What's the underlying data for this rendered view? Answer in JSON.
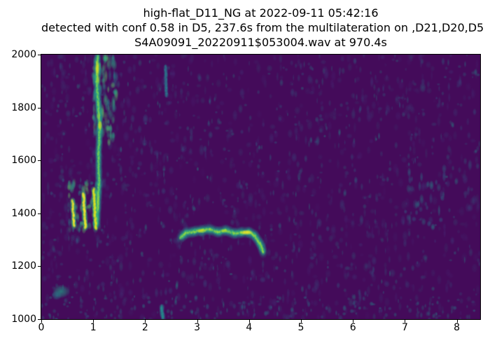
{
  "title": {
    "line1": "high-flat_D11_NG at 2022-09-11 05:42:16",
    "line2": "detected with conf 0.58 in D5, 237.6s from the multilateration on ,D21,D20,D5",
    "line3": "S4A09091_20220911$053004.wav at 970.4s"
  },
  "chart_data": {
    "type": "heatmap",
    "subtype": "spectrogram",
    "colormap": "viridis",
    "title_lines": [
      "high-flat_D11_NG at 2022-09-11 05:42:16",
      "detected with conf 0.58 in D5, 237.6s from the multilateration on ,D21,D20,D5",
      "S4A09091_20220911$053004.wav at 970.4s"
    ],
    "xlim": [
      0,
      8.45
    ],
    "ylim": [
      1000,
      2000
    ],
    "xticks": [
      0,
      1,
      2,
      3,
      4,
      5,
      6,
      7,
      8
    ],
    "yticks": [
      1000,
      1200,
      1400,
      1600,
      1800,
      2000
    ],
    "grid": false,
    "legend": null,
    "colors": {
      "background": "#440b5a",
      "low": "#31688e",
      "mid": "#26828e",
      "high": "#35b779",
      "peak": "#fde725"
    },
    "noise": {
      "seed": 1337,
      "passes": [
        {
          "count": 1100,
          "colors": [
            "#46327e",
            "#3b528b",
            "#31688e",
            "#2c728e",
            "#26828e",
            "#21918c"
          ],
          "rx": [
            2,
            5
          ],
          "ry": [
            3,
            9
          ],
          "alpha": [
            0.1,
            0.38
          ]
        },
        {
          "count": 650,
          "colors": [
            "#2c728e",
            "#26828e",
            "#21918c",
            "#1f9e89"
          ],
          "rx": [
            1.2,
            3.2
          ],
          "ry": [
            2,
            6
          ],
          "alpha": [
            0.2,
            0.5
          ]
        },
        {
          "count": 140,
          "colors": [
            "#26828e",
            "#21918c"
          ],
          "rx": [
            1.5,
            3.5
          ],
          "ry": [
            2,
            5
          ],
          "alpha": [
            0.25,
            0.55
          ],
          "f": [
            1000,
            1085
          ]
        }
      ]
    },
    "features": [
      {
        "name": "upper-band-cloud",
        "kind": "cloud",
        "t": [
          0.99,
          1.45
        ],
        "f": [
          1660,
          1995
        ],
        "count": 120,
        "colors": [
          "#21918c",
          "#27ad81",
          "#35b779",
          "#5ec962"
        ],
        "rx": [
          2,
          4.5
        ],
        "ry": [
          4,
          10
        ],
        "alpha": [
          0.22,
          0.6
        ]
      },
      {
        "name": "main-vertical-tonal",
        "kind": "line",
        "points": [
          [
            1.08,
            1992
          ],
          [
            1.065,
            1900
          ],
          [
            1.1,
            1810
          ],
          [
            1.125,
            1725
          ],
          [
            1.1,
            1625
          ],
          [
            1.11,
            1510
          ],
          [
            1.085,
            1420
          ],
          [
            1.07,
            1362
          ]
        ],
        "layers": [
          {
            "w": 6,
            "color": "#21918c",
            "alpha": 0.32
          },
          {
            "w": 3.2,
            "color": "#35b779",
            "alpha": 0.55
          },
          {
            "w": 1.7,
            "color": "#7ad151",
            "alpha": 0.8
          }
        ]
      },
      {
        "name": "hot-top",
        "kind": "blob",
        "t": 1.08,
        "f": 1948,
        "rt": 0.045,
        "rf": 36,
        "color": "#e8e419",
        "alpha": 0.9
      },
      {
        "name": "hot-top2",
        "kind": "blob",
        "t": 1.09,
        "f": 1905,
        "rt": 0.035,
        "rf": 20,
        "color": "#bddf26",
        "alpha": 0.75
      },
      {
        "name": "hot-mid",
        "kind": "blob",
        "t": 1.13,
        "f": 1733,
        "rt": 0.05,
        "rf": 20,
        "color": "#d8e219",
        "alpha": 0.8
      },
      {
        "name": "hot-mid2",
        "kind": "blob",
        "t": 1.1,
        "f": 1768,
        "rt": 0.04,
        "rf": 16,
        "color": "#aadc32",
        "alpha": 0.6
      },
      {
        "name": "hot-low",
        "kind": "blob",
        "t": 1.09,
        "f": 1445,
        "rt": 0.032,
        "rf": 48,
        "color": "#aadc32",
        "alpha": 0.7
      },
      {
        "name": "upsweep-cloud",
        "kind": "cloud",
        "t": [
          0.52,
          1.12
        ],
        "f": [
          1335,
          1525
        ],
        "count": 70,
        "colors": [
          "#21918c",
          "#35b779",
          "#5ec962"
        ],
        "rx": [
          2,
          4
        ],
        "ry": [
          3,
          8
        ],
        "alpha": [
          0.25,
          0.6
        ]
      },
      {
        "name": "upsweep-1",
        "kind": "line",
        "points": [
          [
            0.63,
            1352
          ],
          [
            0.6,
            1448
          ]
        ],
        "layers": [
          {
            "w": 4.5,
            "color": "#35b779",
            "alpha": 0.5
          },
          {
            "w": 2.2,
            "color": "#fde725",
            "alpha": 0.8
          }
        ]
      },
      {
        "name": "upsweep-2",
        "kind": "line",
        "points": [
          [
            0.85,
            1345
          ],
          [
            0.81,
            1475
          ]
        ],
        "layers": [
          {
            "w": 4.5,
            "color": "#35b779",
            "alpha": 0.5
          },
          {
            "w": 2.4,
            "color": "#fde725",
            "alpha": 0.85
          }
        ]
      },
      {
        "name": "upsweep-3",
        "kind": "line",
        "points": [
          [
            1.05,
            1342
          ],
          [
            1.01,
            1490
          ]
        ],
        "layers": [
          {
            "w": 4.5,
            "color": "#35b779",
            "alpha": 0.5
          },
          {
            "w": 2.4,
            "color": "#e8e419",
            "alpha": 0.85
          }
        ]
      },
      {
        "name": "horizontal-tonal",
        "kind": "line",
        "points": [
          [
            2.68,
            1308
          ],
          [
            2.78,
            1326
          ],
          [
            2.95,
            1331
          ],
          [
            3.1,
            1336
          ],
          [
            3.25,
            1339
          ],
          [
            3.4,
            1329
          ],
          [
            3.55,
            1336
          ],
          [
            3.7,
            1325
          ],
          [
            3.85,
            1327
          ],
          [
            4.0,
            1329
          ],
          [
            4.1,
            1317
          ],
          [
            4.2,
            1288
          ],
          [
            4.28,
            1252
          ]
        ],
        "layers": [
          {
            "w": 7,
            "color": "#21918c",
            "alpha": 0.3
          },
          {
            "w": 3.6,
            "color": "#35b779",
            "alpha": 0.55
          },
          {
            "w": 1.8,
            "color": "#9bd93c",
            "alpha": 0.75
          }
        ]
      },
      {
        "name": "hot-h1",
        "kind": "blob",
        "t": 3.08,
        "f": 1334,
        "rt": 0.1,
        "rf": 9,
        "color": "#d8e219",
        "alpha": 0.8
      },
      {
        "name": "hot-h2",
        "kind": "blob",
        "t": 3.52,
        "f": 1334,
        "rt": 0.08,
        "rf": 8,
        "color": "#bddf26",
        "alpha": 0.7
      },
      {
        "name": "hot-h3",
        "kind": "blob",
        "t": 3.95,
        "f": 1328,
        "rt": 0.13,
        "rf": 10,
        "color": "#fde725",
        "alpha": 0.9
      },
      {
        "name": "low-left-blob",
        "kind": "blob",
        "t": 0.38,
        "f": 1105,
        "rt": 0.17,
        "rf": 26,
        "color": "#1fa187",
        "alpha": 0.7
      },
      {
        "name": "low-left-blob2",
        "kind": "blob",
        "t": 0.3,
        "f": 1090,
        "rt": 0.1,
        "rf": 18,
        "color": "#26828e",
        "alpha": 0.6
      },
      {
        "name": "right-cluster",
        "kind": "cloud",
        "t": [
          7.05,
          7.8
        ],
        "f": [
          1330,
          1580
        ],
        "count": 30,
        "colors": [
          "#26828e",
          "#21918c",
          "#2c728e"
        ],
        "rx": [
          2,
          4
        ],
        "ry": [
          4,
          9
        ],
        "alpha": [
          0.3,
          0.6
        ]
      },
      {
        "name": "bottom-streak",
        "kind": "line",
        "points": [
          [
            2.32,
            1048
          ],
          [
            2.34,
            1004
          ]
        ],
        "layers": [
          {
            "w": 4,
            "color": "#26828e",
            "alpha": 0.5
          },
          {
            "w": 2,
            "color": "#21918c",
            "alpha": 0.7
          }
        ]
      },
      {
        "name": "upper-teal-streak",
        "kind": "line",
        "points": [
          [
            2.39,
            1955
          ],
          [
            2.41,
            1845
          ]
        ],
        "layers": [
          {
            "w": 3.5,
            "color": "#2c728e",
            "alpha": 0.45
          },
          {
            "w": 1.8,
            "color": "#26828e",
            "alpha": 0.6
          }
        ]
      }
    ]
  }
}
